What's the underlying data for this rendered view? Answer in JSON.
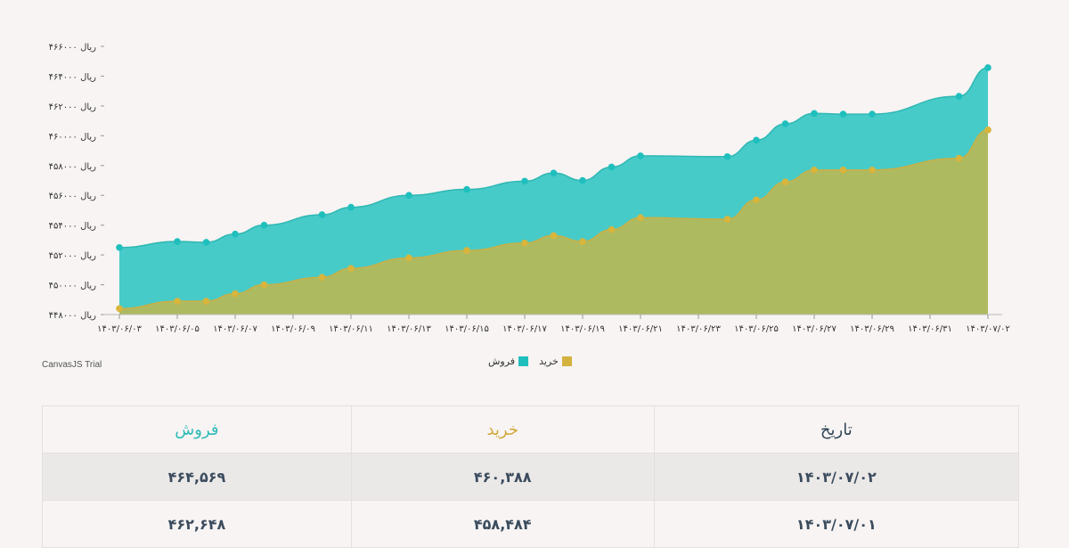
{
  "chart_data": {
    "type": "area",
    "x": [
      "1403/06/03",
      "1403/06/05",
      "1403/06/06",
      "1403/06/07",
      "1403/06/08",
      "1403/06/10",
      "1403/06/11",
      "1403/06/13",
      "1403/06/15",
      "1403/06/17",
      "1403/06/18",
      "1403/06/19",
      "1403/06/20",
      "1403/06/21",
      "1403/06/24",
      "1403/06/25",
      "1403/06/26",
      "1403/06/27",
      "1403/06/28",
      "1403/06/29",
      "1403/07/01",
      "1403/07/02"
    ],
    "series": [
      {
        "name": "فروش",
        "color": "#3cc8c5",
        "values": [
          452500,
          452900,
          452850,
          453400,
          454000,
          454700,
          455200,
          456000,
          456400,
          456950,
          457500,
          457000,
          457900,
          458650,
          458600,
          459700,
          460800,
          461500,
          461450,
          461450,
          462648,
          464569
        ]
      },
      {
        "name": "خرید",
        "color": "#b7b857",
        "values": [
          448400,
          448900,
          448900,
          449400,
          450000,
          450500,
          451100,
          451800,
          452300,
          452800,
          453300,
          452900,
          453700,
          454500,
          454400,
          455700,
          456900,
          457700,
          457700,
          457700,
          458484,
          460388
        ]
      }
    ],
    "x_ticks": [
      "۱۴۰۳/۰۶/۰۳",
      "۱۴۰۳/۰۶/۰۵",
      "۱۴۰۳/۰۶/۰۷",
      "۱۴۰۳/۰۶/۰۹",
      "۱۴۰۳/۰۶/۱۱",
      "۱۴۰۳/۰۶/۱۳",
      "۱۴۰۳/۰۶/۱۵",
      "۱۴۰۳/۰۶/۱۷",
      "۱۴۰۳/۰۶/۱۹",
      "۱۴۰۳/۰۶/۲۱",
      "۱۴۰۳/۰۶/۲۳",
      "۱۴۰۳/۰۶/۲۵",
      "۱۴۰۳/۰۶/۲۷",
      "۱۴۰۳/۰۶/۲۹",
      "۱۴۰۳/۰۶/۳۱",
      "۱۴۰۳/۰۷/۰۲"
    ],
    "y_ticks": [
      {
        "value": 448000,
        "label": "۴۴۸۰۰۰ ریال"
      },
      {
        "value": 450000,
        "label": "۴۵۰۰۰۰ ریال"
      },
      {
        "value": 452000,
        "label": "۴۵۲۰۰۰ ریال"
      },
      {
        "value": 454000,
        "label": "۴۵۴۰۰۰ ریال"
      },
      {
        "value": 456000,
        "label": "۴۵۶۰۰۰ ریال"
      },
      {
        "value": 458000,
        "label": "۴۵۸۰۰۰ ریال"
      },
      {
        "value": 460000,
        "label": "۴۶۰۰۰۰ ریال"
      },
      {
        "value": 462000,
        "label": "۴۶۲۰۰۰ ریال"
      },
      {
        "value": 464000,
        "label": "۴۶۴۰۰۰ ریال"
      },
      {
        "value": 466000,
        "label": "۴۶۶۰۰۰ ریال"
      }
    ],
    "ylim": [
      448000,
      466000
    ],
    "grid": false,
    "legend_position": "bottom-center"
  },
  "watermark": "CanvasJS Trial",
  "legend": {
    "sell_label": "فروش",
    "buy_label": "خرید",
    "sell_color": "#1fbfbd",
    "buy_color": "#d4b23e"
  },
  "table": {
    "headers": {
      "date": "تاریخ",
      "buy": "خرید",
      "sell": "فروش"
    },
    "header_colors": {
      "date": "#2f4558",
      "buy": "#d4a83b",
      "sell": "#2fbcb8"
    },
    "rows": [
      {
        "date": "۱۴۰۳/۰۷/۰۲",
        "buy": "۴۶۰,۳۸۸",
        "sell": "۴۶۴,۵۶۹"
      },
      {
        "date": "۱۴۰۳/۰۷/۰۱",
        "buy": "۴۵۸,۴۸۴",
        "sell": "۴۶۲,۶۴۸"
      }
    ]
  }
}
